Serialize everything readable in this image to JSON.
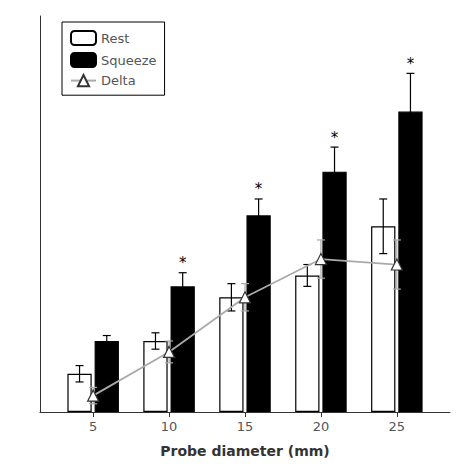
{
  "chart_data": {
    "type": "bar",
    "x": [
      5,
      10,
      15,
      20,
      25
    ],
    "xlabel": "Probe diameter (mm)",
    "xlim": [
      1.5,
      28.5
    ],
    "xticks": [
      5,
      10,
      15,
      20,
      25
    ],
    "ylim": [
      0,
      1.45
    ],
    "tick_labels": "x",
    "grid": false,
    "legend": "upper left",
    "series": [
      {
        "name": "Rest",
        "type": "bar",
        "color": "#ffffff",
        "values": [
          0.14,
          0.26,
          0.42,
          0.5,
          0.68
        ],
        "errors": [
          0.03,
          0.03,
          0.05,
          0.04,
          0.1
        ]
      },
      {
        "name": "Squeeze",
        "type": "bar",
        "color": "#000000",
        "values": [
          0.26,
          0.46,
          0.72,
          0.88,
          1.1
        ],
        "errors": [
          0.02,
          0.05,
          0.06,
          0.09,
          0.14
        ]
      },
      {
        "name": "Delta",
        "type": "line",
        "color": "#aaaaaa",
        "marker": "triangle",
        "values": [
          0.06,
          0.22,
          0.42,
          0.56,
          0.54
        ],
        "errors": [
          0.03,
          0.04,
          0.05,
          0.07,
          0.09
        ]
      }
    ],
    "annotations": [
      {
        "text": "*",
        "x": 10,
        "series": "Squeeze"
      },
      {
        "text": "*",
        "x": 15,
        "series": "Squeeze"
      },
      {
        "text": "*",
        "x": 20,
        "series": "Squeeze"
      },
      {
        "text": "*",
        "x": 25,
        "series": "Squeeze"
      }
    ]
  }
}
